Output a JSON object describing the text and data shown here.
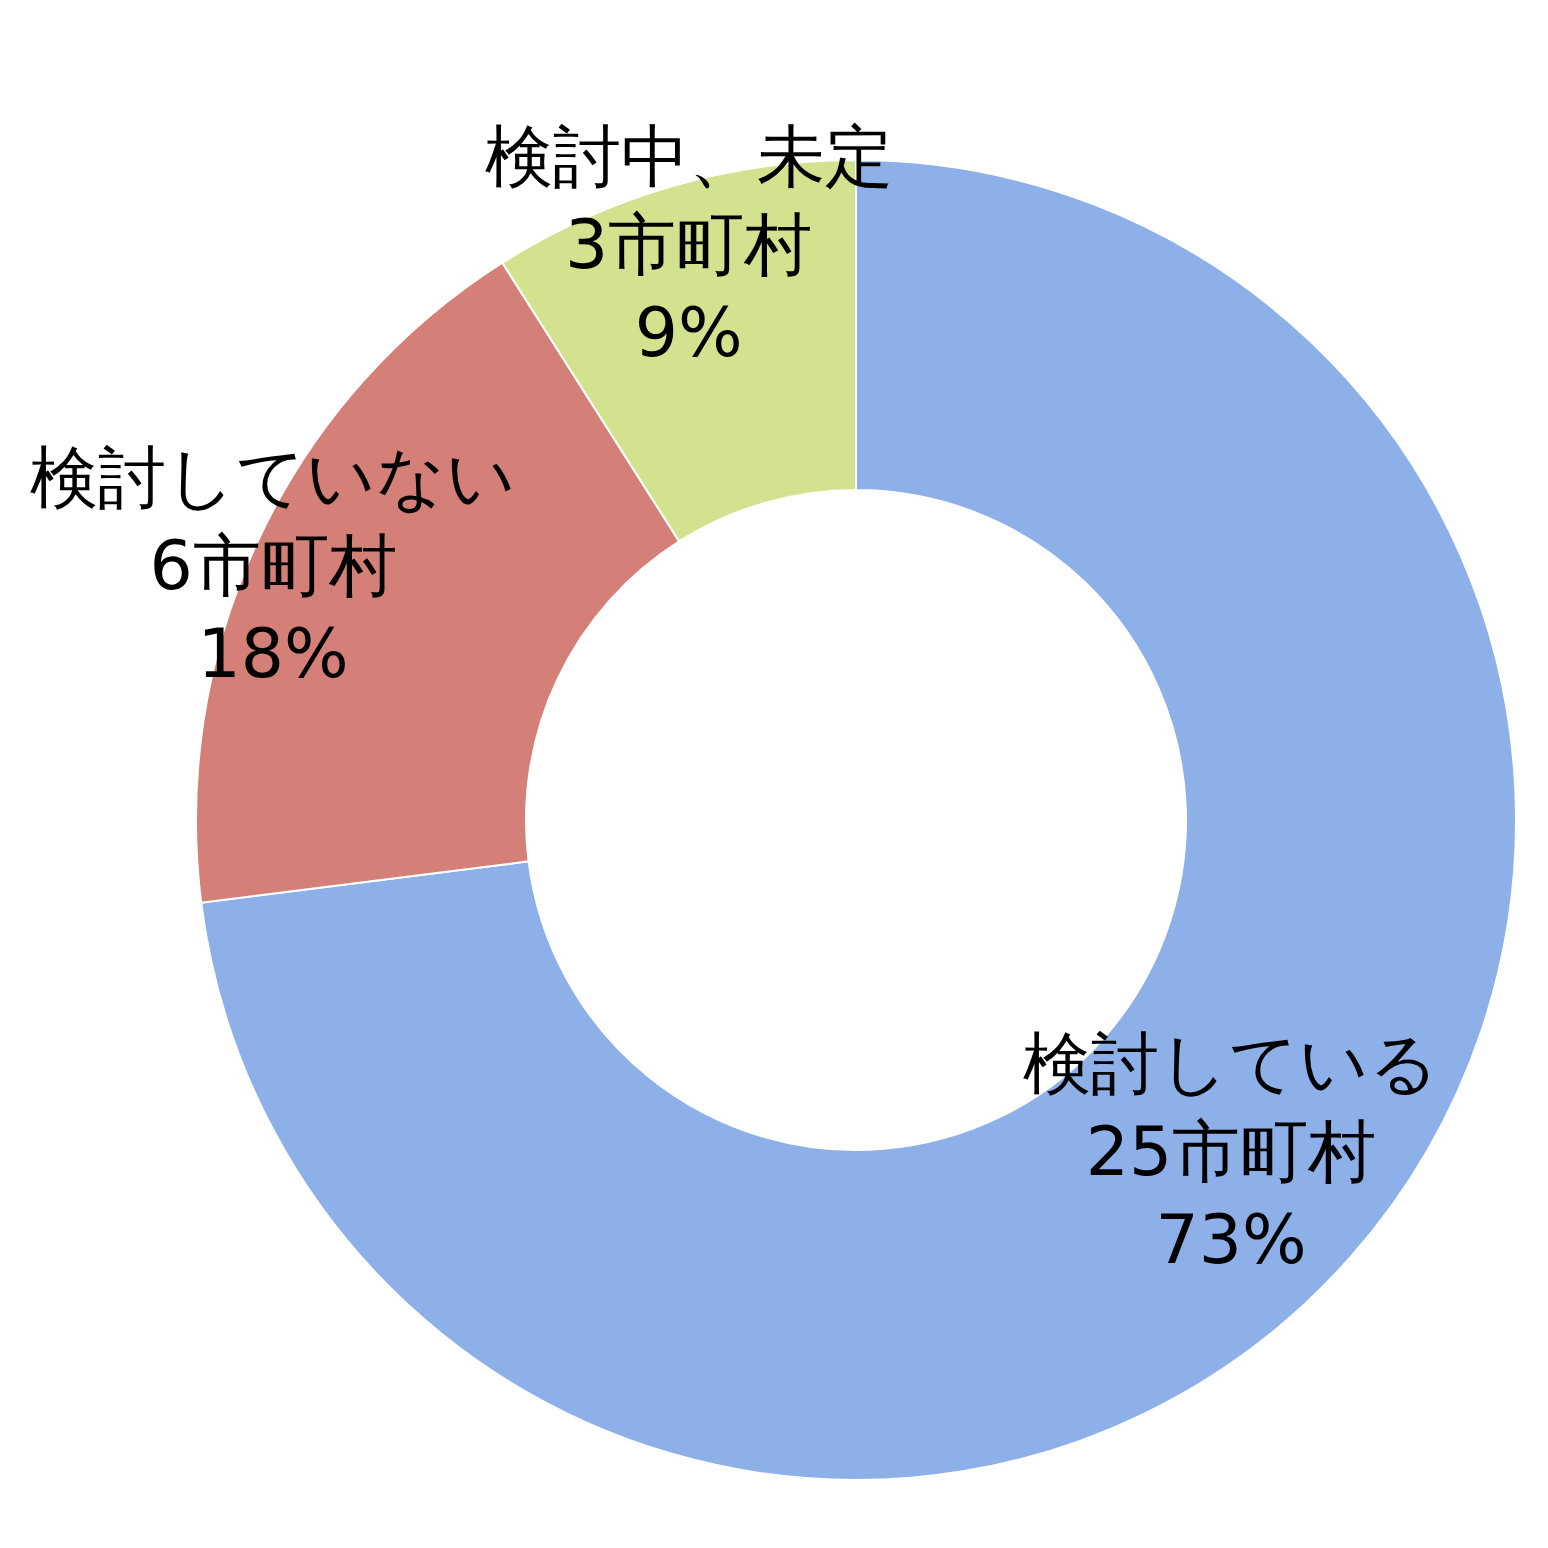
{
  "chart_data": {
    "type": "donut",
    "categories": [
      "検討している",
      "検討していない",
      "検討中、未定"
    ],
    "values": [
      73,
      18,
      9
    ],
    "value_labels": [
      "25市町村\n73%",
      "6市町村\n18%",
      "3市町村\n9%"
    ],
    "colors": [
      "#8eb0e8",
      "#d47f78",
      "#d3e28e"
    ]
  }
}
